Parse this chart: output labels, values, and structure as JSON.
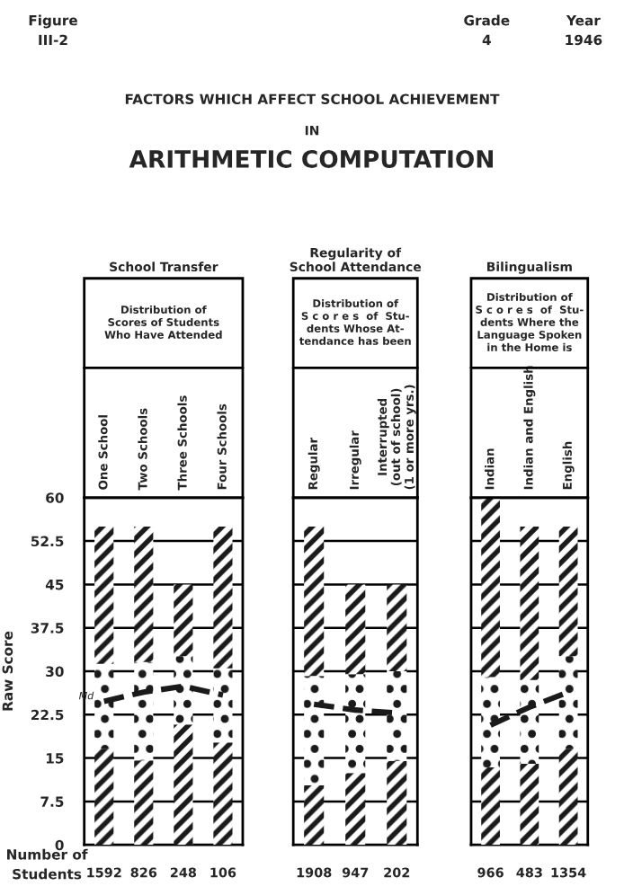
{
  "chart_data": [
    {
      "type": "bar",
      "stacked": true,
      "title": "School Transfer",
      "subtitle": "Distribution of\nScores of Students\nWho Have Attended",
      "ylabel": "Raw Score",
      "categories": [
        "One School",
        "Two Schools",
        "Three Schools",
        "Four Schools"
      ],
      "series": [
        {
          "color": "#1a1a1a",
          "values": [
            16.6,
            14.6,
            20.8,
            17.7
          ]
        },
        {
          "color": "#1a1a1a",
          "values": [
            14.7,
            17.0,
            11.8,
            12.8
          ]
        },
        {
          "color": "#1a1a1a",
          "values": [
            23.7,
            23.4,
            12.4,
            24.5
          ]
        },
        {
          "type": "line",
          "name": "Md",
          "color": "#1a1a1a",
          "values": [
            24.8,
            26.4,
            27.4,
            25.9
          ]
        }
      ],
      "line_style": "dashed",
      "ylim": [
        0,
        60
      ],
      "yticks": [
        0,
        7.5,
        15,
        22.5,
        30,
        37.5,
        45,
        52.5,
        60
      ],
      "grid": "y",
      "annotations": [
        "Figure\nIII-2",
        "Grade\n4",
        "Year\n1946",
        "FACTORS WHICH AFFECT SCHOOL ACHIEVEMENT",
        "IN",
        "ARITHMETIC COMPUTATION",
        "Number of\nStudents",
        "1592",
        "826",
        "248",
        "106"
      ]
    },
    {
      "type": "bar",
      "stacked": true,
      "title": "Regularity of\nSchool Attendance",
      "subtitle": "Distribution of\nS c o r e s  of  Stu-\ndents Whose At-\ntendance has been",
      "categories": [
        "Regular",
        "Irregular",
        "Interrupted\n(out of school)\n(1 or more yrs.)"
      ],
      "series": [
        {
          "color": "#1a1a1a",
          "values": [
            10.3,
            12.4,
            14.5
          ]
        },
        {
          "color": "#1a1a1a",
          "values": [
            18.9,
            17.1,
            15.5
          ]
        },
        {
          "color": "#1a1a1a",
          "values": [
            25.8,
            15.5,
            15.0
          ]
        },
        {
          "type": "line",
          "color": "#1a1a1a",
          "values": [
            24.3,
            23.3,
            22.8
          ]
        }
      ],
      "line_style": "dashed",
      "ylim": [
        0,
        60
      ],
      "yticks": [
        0,
        7.5,
        15,
        22.5,
        30,
        37.5,
        45,
        52.5,
        60
      ],
      "grid": "y",
      "tick_labels": "x",
      "annotations": [
        "1908",
        "947",
        "202"
      ]
    },
    {
      "type": "bar",
      "stacked": true,
      "title": "Bilingualism",
      "subtitle": "Distribution of\nS c o r e s  of  Stu-\ndents Where the\nLanguage Spoken\nin the Home is",
      "categories": [
        "Indian",
        "Indian and English",
        "English"
      ],
      "series": [
        {
          "color": "#1a1a1a",
          "values": [
            13.4,
            14.0,
            16.6
          ]
        },
        {
          "color": "#1a1a1a",
          "values": [
            15.6,
            14.5,
            16.0
          ]
        },
        {
          "color": "#1a1a1a",
          "values": [
            31.0,
            26.5,
            22.4
          ]
        },
        {
          "type": "line",
          "color": "#1a1a1a",
          "values": [
            20.7,
            23.8,
            26.4
          ]
        }
      ],
      "line_style": "dashed",
      "ylim": [
        0,
        60
      ],
      "yticks": [
        0,
        7.5,
        15,
        22.5,
        30,
        37.5,
        45,
        52.5,
        60
      ],
      "grid": "y",
      "tick_labels": "x",
      "annotations": [
        "966",
        "483",
        "1354"
      ]
    }
  ]
}
